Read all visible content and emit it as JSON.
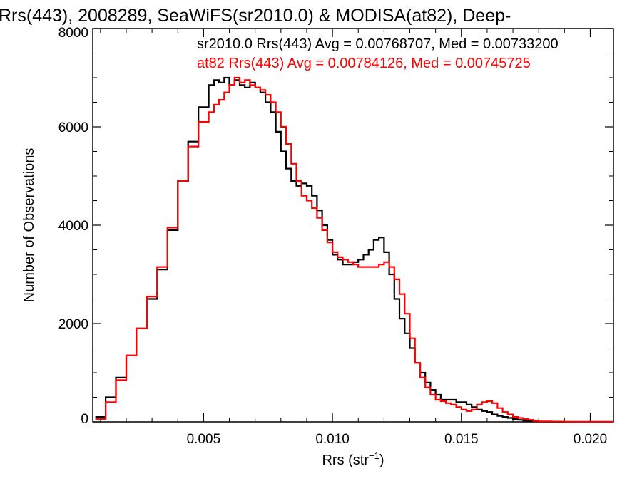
{
  "chart_data": {
    "type": "line",
    "title": "Rrs(443), 2008289, SeaWiFS(sr2010.0) & MODISA(at82), Deep-",
    "xlabel": "Rrs (str",
    "xlabel_sup": "−1",
    "xlabel_end": ")",
    "ylabel": "Number of Observations",
    "xlim": [
      0.0007,
      0.0209
    ],
    "ylim": [
      0,
      8000
    ],
    "x_ticks": [
      0.005,
      0.01,
      0.015,
      0.02
    ],
    "x_tick_labels": [
      "0.005",
      "0.010",
      "0.015",
      "0.020"
    ],
    "y_ticks": [
      0,
      2000,
      4000,
      6000,
      8000
    ],
    "y_tick_labels": [
      "0",
      "2000",
      "4000",
      "6000",
      "8000"
    ],
    "grid": false,
    "annotations": [
      {
        "text": "sr2010.0 Rrs(443) Avg = 0.00768707, Med = 0.00733200",
        "color": "#000000"
      },
      {
        "text": "at82 Rrs(443) Avg = 0.00784126, Med = 0.00745725",
        "color": "#ff0000"
      }
    ],
    "series": [
      {
        "name": "sr2010.0",
        "color": "#000000",
        "x": [
          0.0008,
          0.0012,
          0.0016,
          0.002,
          0.0024,
          0.0028,
          0.0032,
          0.0036,
          0.004,
          0.0044,
          0.0048,
          0.0052,
          0.0054,
          0.0056,
          0.0058,
          0.006,
          0.0062,
          0.0064,
          0.0066,
          0.0068,
          0.007,
          0.0072,
          0.0074,
          0.0076,
          0.0078,
          0.008,
          0.0082,
          0.0084,
          0.0086,
          0.0088,
          0.009,
          0.0092,
          0.0094,
          0.0096,
          0.0098,
          0.01,
          0.0102,
          0.0104,
          0.0106,
          0.0108,
          0.011,
          0.0112,
          0.0114,
          0.0116,
          0.0118,
          0.012,
          0.0122,
          0.0124,
          0.0126,
          0.0128,
          0.013,
          0.0132,
          0.0134,
          0.0136,
          0.0138,
          0.014,
          0.0142,
          0.0144,
          0.0146,
          0.0148,
          0.015,
          0.0152,
          0.0154,
          0.0156,
          0.0158,
          0.016,
          0.0162,
          0.0164,
          0.0166,
          0.0168,
          0.017,
          0.0172,
          0.0174,
          0.0176,
          0.0178,
          0.018,
          0.0185,
          0.019,
          0.02,
          0.0209
        ],
        "y": [
          100,
          500,
          900,
          1350,
          1900,
          2500,
          3100,
          3900,
          4900,
          5700,
          6400,
          6850,
          6950,
          6900,
          7000,
          6850,
          6950,
          6850,
          6800,
          6900,
          6800,
          6700,
          6500,
          6300,
          5900,
          5500,
          5150,
          4900,
          4800,
          4850,
          4800,
          4600,
          4300,
          4000,
          3700,
          3400,
          3300,
          3200,
          3200,
          3250,
          3300,
          3400,
          3500,
          3700,
          3750,
          3450,
          3000,
          2500,
          2100,
          1800,
          1500,
          1200,
          1000,
          800,
          650,
          550,
          450,
          450,
          450,
          400,
          400,
          350,
          300,
          250,
          220,
          200,
          150,
          120,
          100,
          80,
          60,
          40,
          25,
          15,
          10,
          5,
          2,
          0,
          0,
          0
        ]
      },
      {
        "name": "at82",
        "color": "#ff0000",
        "x": [
          0.0008,
          0.0012,
          0.0016,
          0.002,
          0.0024,
          0.0028,
          0.0032,
          0.0036,
          0.004,
          0.0044,
          0.0048,
          0.0052,
          0.0054,
          0.0056,
          0.0058,
          0.006,
          0.0062,
          0.0064,
          0.0066,
          0.0068,
          0.007,
          0.0072,
          0.0074,
          0.0076,
          0.0078,
          0.008,
          0.0082,
          0.0084,
          0.0086,
          0.0088,
          0.009,
          0.0092,
          0.0094,
          0.0096,
          0.0098,
          0.01,
          0.0102,
          0.0104,
          0.0106,
          0.0108,
          0.011,
          0.0112,
          0.0114,
          0.0116,
          0.0118,
          0.012,
          0.0122,
          0.0124,
          0.0126,
          0.0128,
          0.013,
          0.0132,
          0.0134,
          0.0136,
          0.0138,
          0.014,
          0.0142,
          0.0144,
          0.0146,
          0.0148,
          0.015,
          0.0152,
          0.0154,
          0.0156,
          0.0158,
          0.016,
          0.0162,
          0.0164,
          0.0166,
          0.0168,
          0.017,
          0.0172,
          0.0174,
          0.0176,
          0.0178,
          0.018,
          0.0185,
          0.019,
          0.02,
          0.0209
        ],
        "y": [
          60,
          400,
          850,
          1350,
          1900,
          2550,
          3150,
          3950,
          4900,
          5600,
          6100,
          6300,
          6450,
          6550,
          6700,
          6850,
          7000,
          6900,
          6950,
          6850,
          6800,
          6750,
          6650,
          6500,
          6300,
          6000,
          5650,
          5250,
          4900,
          4600,
          4500,
          4350,
          4150,
          3900,
          3650,
          3450,
          3350,
          3300,
          3250,
          3200,
          3150,
          3150,
          3150,
          3150,
          3200,
          3250,
          3150,
          2900,
          2600,
          2200,
          1700,
          1200,
          900,
          700,
          550,
          450,
          420,
          380,
          350,
          300,
          250,
          220,
          250,
          350,
          400,
          420,
          380,
          280,
          200,
          150,
          100,
          80,
          60,
          40,
          20,
          10,
          5,
          0,
          0,
          0
        ]
      }
    ]
  }
}
